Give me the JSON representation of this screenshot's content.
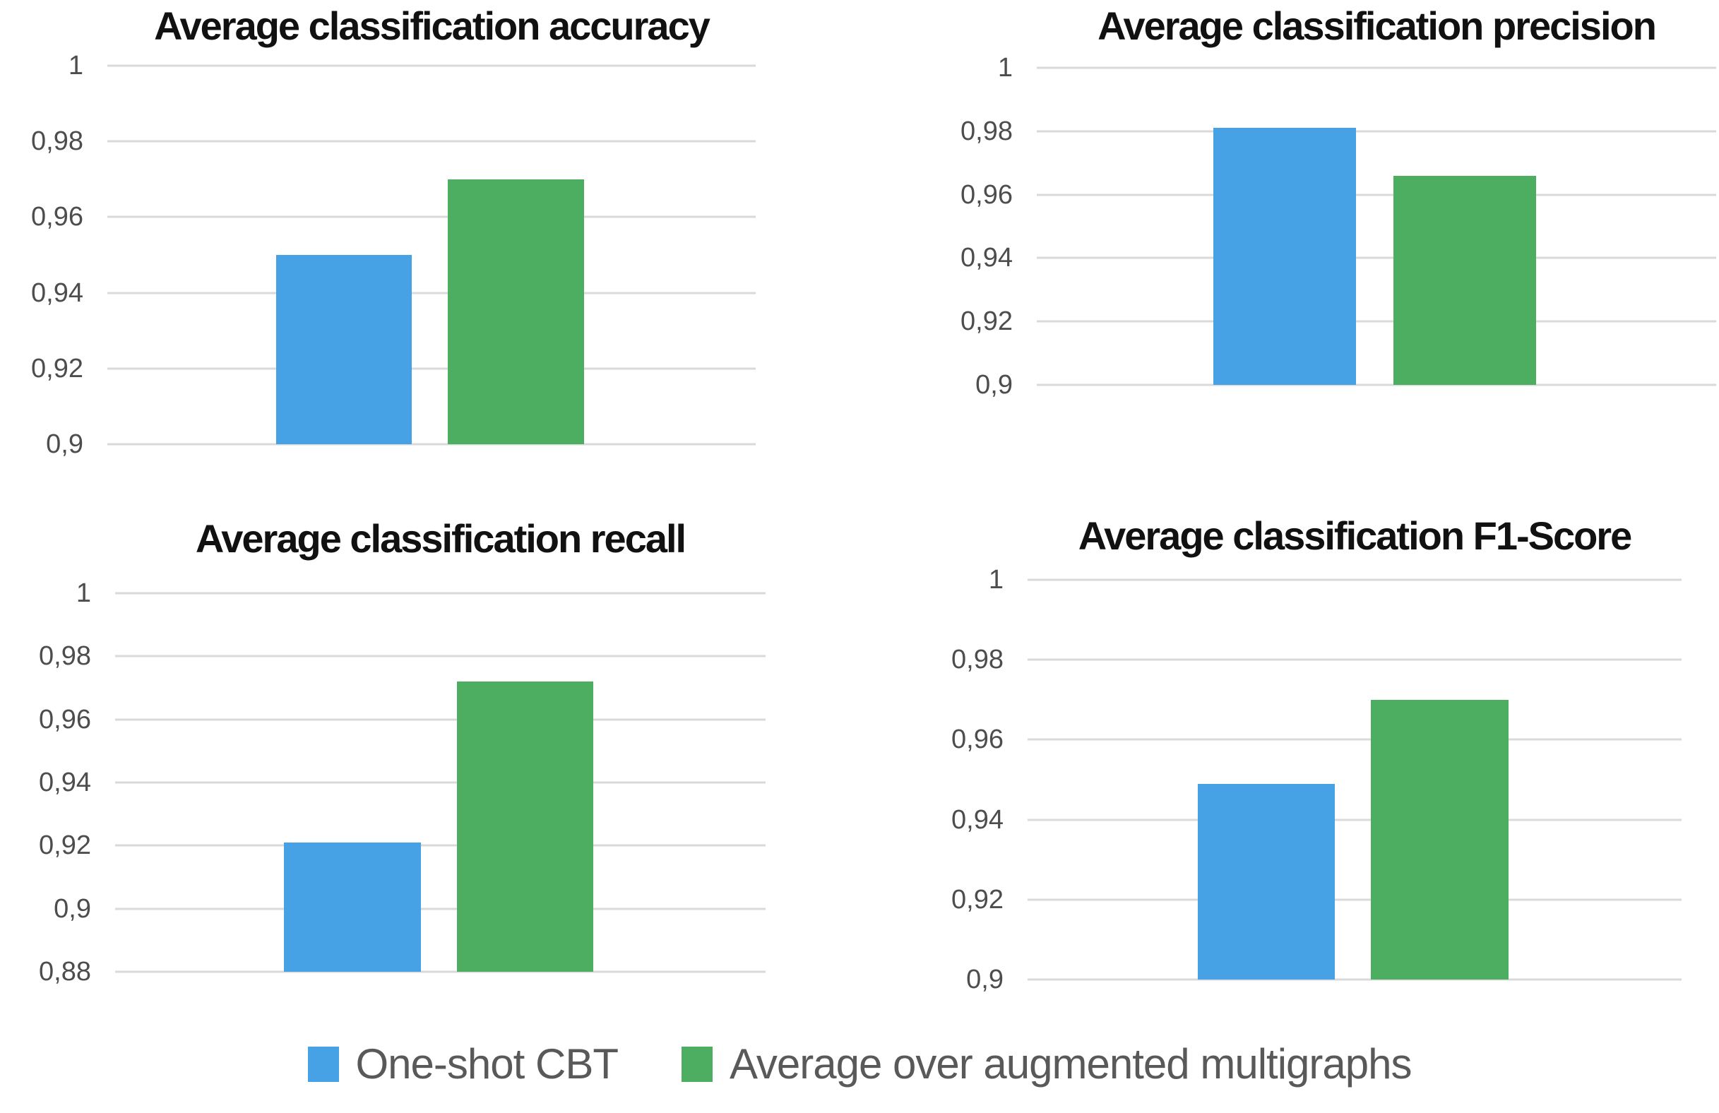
{
  "page": {
    "background": "#ffffff"
  },
  "colors": {
    "blue": "#47a2e5",
    "green": "#4dae61",
    "gridline": "#d9d9d9",
    "tick_text": "#4d4d4d",
    "title_text": "#111111",
    "legend_text": "#595959"
  },
  "legend": {
    "items": [
      {
        "label": "One-shot CBT",
        "color": "#47a2e5",
        "swatch": "blue-square"
      },
      {
        "label": "Average over augmented multigraphs",
        "color": "#4dae61",
        "swatch": "green-square"
      }
    ]
  },
  "chart_data": [
    {
      "type": "bar",
      "title": "Average classification accuracy",
      "categories": [
        ""
      ],
      "series": [
        {
          "name": "One-shot CBT",
          "values": [
            0.95
          ]
        },
        {
          "name": "Average over augmented multigraphs",
          "values": [
            0.97
          ]
        }
      ],
      "ylim": [
        0.9,
        1.0
      ],
      "ytick_step": 0.02,
      "yticks": [
        {
          "label": "1",
          "value": 1.0
        },
        {
          "label": "0,98",
          "value": 0.98
        },
        {
          "label": "0,96",
          "value": 0.96
        },
        {
          "label": "0,94",
          "value": 0.94
        },
        {
          "label": "0,92",
          "value": 0.92
        },
        {
          "label": "0,9",
          "value": 0.9
        }
      ],
      "grid": true,
      "decimal_separator": ",",
      "legend_position": "shared-bottom"
    },
    {
      "type": "bar",
      "title": "Average classification precision",
      "categories": [
        ""
      ],
      "series": [
        {
          "name": "One-shot CBT",
          "values": [
            0.981
          ]
        },
        {
          "name": "Average over augmented multigraphs",
          "values": [
            0.966
          ]
        }
      ],
      "ylim": [
        0.9,
        1.0
      ],
      "ytick_step": 0.02,
      "yticks": [
        {
          "label": "1",
          "value": 1.0
        },
        {
          "label": "0,98",
          "value": 0.98
        },
        {
          "label": "0,96",
          "value": 0.96
        },
        {
          "label": "0,94",
          "value": 0.94
        },
        {
          "label": "0,92",
          "value": 0.92
        },
        {
          "label": "0,9",
          "value": 0.9
        }
      ],
      "grid": true,
      "decimal_separator": ",",
      "legend_position": "shared-bottom"
    },
    {
      "type": "bar",
      "title": "Average classification recall",
      "categories": [
        ""
      ],
      "series": [
        {
          "name": "One-shot CBT",
          "values": [
            0.921
          ]
        },
        {
          "name": "Average over augmented multigraphs",
          "values": [
            0.972
          ]
        }
      ],
      "ylim": [
        0.88,
        1.0
      ],
      "ytick_step": 0.02,
      "yticks": [
        {
          "label": "1",
          "value": 1.0
        },
        {
          "label": "0,98",
          "value": 0.98
        },
        {
          "label": "0,96",
          "value": 0.96
        },
        {
          "label": "0,94",
          "value": 0.94
        },
        {
          "label": "0,92",
          "value": 0.92
        },
        {
          "label": "0,9",
          "value": 0.9
        },
        {
          "label": "0,88",
          "value": 0.88
        }
      ],
      "grid": true,
      "decimal_separator": ",",
      "legend_position": "shared-bottom"
    },
    {
      "type": "bar",
      "title": "Average classification F1-Score",
      "categories": [
        ""
      ],
      "series": [
        {
          "name": "One-shot CBT",
          "values": [
            0.949
          ]
        },
        {
          "name": "Average over augmented multigraphs",
          "values": [
            0.97
          ]
        }
      ],
      "ylim": [
        0.9,
        1.0
      ],
      "ytick_step": 0.02,
      "yticks": [
        {
          "label": "1",
          "value": 1.0
        },
        {
          "label": "0,98",
          "value": 0.98
        },
        {
          "label": "0,96",
          "value": 0.96
        },
        {
          "label": "0,94",
          "value": 0.94
        },
        {
          "label": "0,92",
          "value": 0.92
        },
        {
          "label": "0,9",
          "value": 0.9
        }
      ],
      "grid": true,
      "decimal_separator": ",",
      "legend_position": "shared-bottom"
    }
  ]
}
